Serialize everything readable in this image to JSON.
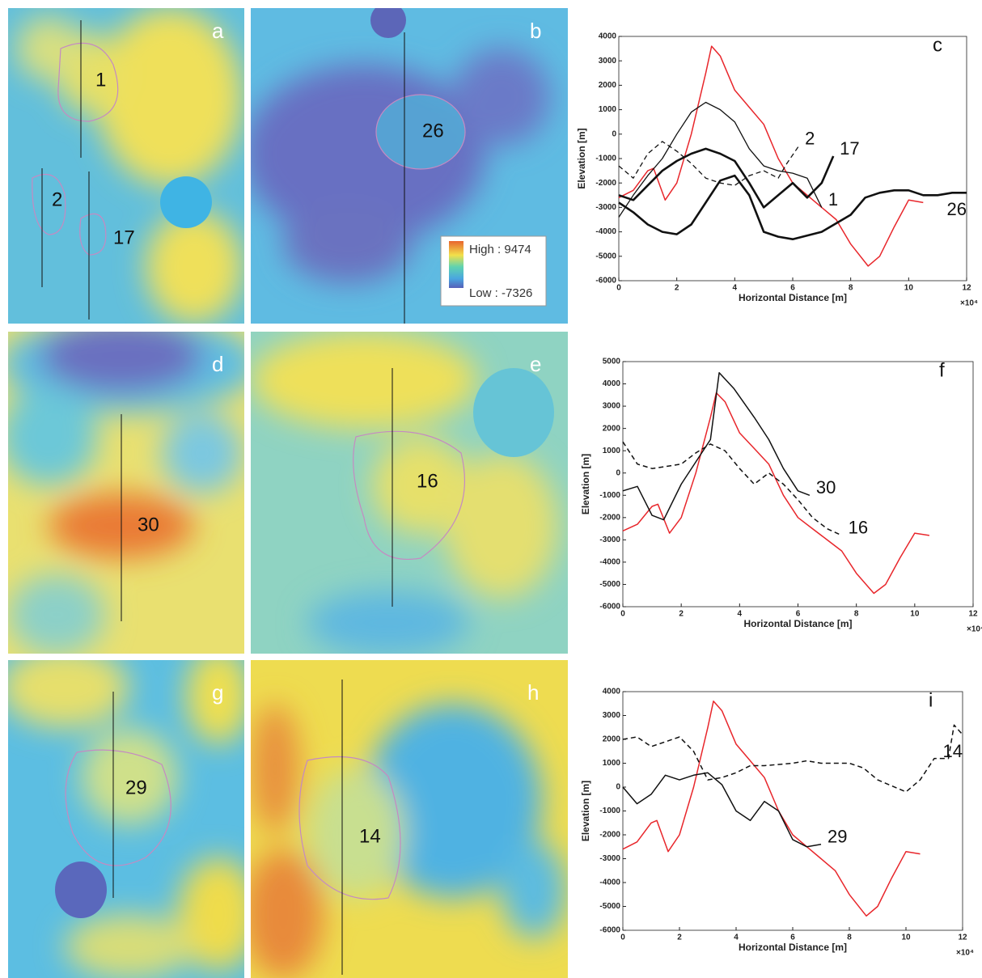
{
  "maps": [
    {
      "panel": "a",
      "labels": [
        "1",
        "2",
        "17"
      ]
    },
    {
      "panel": "b",
      "labels": [
        "26"
      ]
    },
    {
      "panel": "d",
      "labels": [
        "30"
      ]
    },
    {
      "panel": "e",
      "labels": [
        "16"
      ]
    },
    {
      "panel": "g",
      "labels": [
        "29"
      ]
    },
    {
      "panel": "h",
      "labels": [
        "14"
      ]
    }
  ],
  "legend": {
    "high": "High : 9474",
    "low": "Low : -7326"
  },
  "chart_data": [
    {
      "type": "line",
      "panel": "c",
      "xlabel": "Horizontal Distance [m]",
      "ylabel": "Elevation [m]",
      "x_multiplier": "×10⁴",
      "xlim": [
        0,
        12
      ],
      "xticks": [
        0,
        2,
        4,
        6,
        8,
        10,
        12
      ],
      "ylim": [
        -6000,
        4000
      ],
      "yticks": [
        -6000,
        -5000,
        -4000,
        -3000,
        -2000,
        -1000,
        0,
        1000,
        2000,
        3000,
        4000
      ],
      "series": [
        {
          "color": "#e8262b",
          "width": 1.5,
          "dash": false,
          "x": [
            0,
            0.5,
            1,
            1.2,
            1.6,
            2,
            2.5,
            3,
            3.2,
            3.5,
            4,
            4.5,
            5,
            5.5,
            6,
            6.5,
            7,
            7.5,
            8,
            8.6,
            9,
            9.5,
            10,
            10.5
          ],
          "values": [
            -2600,
            -2300,
            -1500,
            -1400,
            -2700,
            -2000,
            0,
            2500,
            3600,
            3200,
            1800,
            1100,
            400,
            -1000,
            -2000,
            -2500,
            -3000,
            -3500,
            -4500,
            -5400,
            -5000,
            -3800,
            -2700,
            -2800
          ]
        },
        {
          "name": "1",
          "color": "#111",
          "width": 1.3,
          "dash": false,
          "x": [
            0,
            0.5,
            1,
            1.5,
            2,
            2.5,
            3,
            3.5,
            4,
            4.5,
            5,
            5.5,
            6,
            6.5,
            7
          ],
          "values": [
            -3400,
            -2500,
            -1700,
            -1000,
            0,
            900,
            1300,
            1000,
            500,
            -600,
            -1300,
            -1500,
            -1600,
            -1800,
            -3000
          ]
        },
        {
          "name": "2",
          "color": "#111",
          "width": 1.3,
          "dash": true,
          "x": [
            0,
            0.5,
            1,
            1.5,
            2,
            2.5,
            3,
            3.5,
            4,
            4.5,
            5,
            5.5,
            5.8,
            6.2
          ],
          "values": [
            -1300,
            -1800,
            -800,
            -300,
            -700,
            -1200,
            -1800,
            -2000,
            -2100,
            -1700,
            -1500,
            -1800,
            -1200,
            -500
          ]
        },
        {
          "name": "17",
          "color": "#111",
          "width": 2.6,
          "dash": false,
          "x": [
            0,
            0.5,
            1,
            1.5,
            2,
            2.5,
            3,
            3.5,
            4,
            4.5,
            5,
            5.5,
            6,
            6.5,
            7,
            7.4
          ],
          "values": [
            -2500,
            -2700,
            -2100,
            -1500,
            -1100,
            -800,
            -600,
            -800,
            -1100,
            -2000,
            -3000,
            -2500,
            -2000,
            -2600,
            -2000,
            -900
          ]
        },
        {
          "name": "26",
          "color": "#111",
          "width": 2.6,
          "dash": false,
          "x": [
            0,
            0.5,
            1,
            1.5,
            2,
            2.5,
            3,
            3.5,
            4,
            4.5,
            5,
            5.5,
            6,
            7,
            8,
            8.5,
            9,
            9.5,
            10,
            10.5,
            11,
            11.5,
            12
          ],
          "values": [
            -2800,
            -3200,
            -3700,
            -4000,
            -4100,
            -3700,
            -2800,
            -1900,
            -1700,
            -2500,
            -4000,
            -4200,
            -4300,
            -4000,
            -3300,
            -2600,
            -2400,
            -2300,
            -2300,
            -2500,
            -2500,
            -2400,
            -2400
          ]
        }
      ]
    },
    {
      "type": "line",
      "panel": "f",
      "xlabel": "Horizontal Distance [m]",
      "ylabel": "Elevation [m]",
      "x_multiplier": "×10⁴",
      "xlim": [
        0,
        12
      ],
      "xticks": [
        0,
        2,
        4,
        6,
        8,
        10,
        12
      ],
      "ylim": [
        -6000,
        5000
      ],
      "yticks": [
        -6000,
        -5000,
        -4000,
        -3000,
        -2000,
        -1000,
        0,
        1000,
        2000,
        3000,
        4000,
        5000
      ],
      "series": [
        {
          "color": "#e8262b",
          "width": 1.5,
          "dash": false,
          "x": [
            0,
            0.5,
            1,
            1.2,
            1.6,
            2,
            2.5,
            3,
            3.2,
            3.5,
            4,
            4.5,
            5,
            5.5,
            6,
            6.5,
            7,
            7.5,
            8,
            8.6,
            9,
            9.5,
            10,
            10.5
          ],
          "values": [
            -2600,
            -2300,
            -1500,
            -1400,
            -2700,
            -2000,
            0,
            2500,
            3600,
            3200,
            1800,
            1100,
            400,
            -1000,
            -2000,
            -2500,
            -3000,
            -3500,
            -4500,
            -5400,
            -5000,
            -3800,
            -2700,
            -2800
          ]
        },
        {
          "name": "30",
          "color": "#111",
          "width": 1.5,
          "dash": false,
          "x": [
            0,
            0.5,
            1,
            1.4,
            2,
            2.5,
            3,
            3.3,
            3.8,
            4.5,
            5,
            5.5,
            6,
            6.4
          ],
          "values": [
            -800,
            -600,
            -1900,
            -2100,
            -500,
            500,
            1500,
            4500,
            3800,
            2500,
            1500,
            200,
            -800,
            -1000
          ]
        },
        {
          "name": "16",
          "color": "#111",
          "width": 1.5,
          "dash": true,
          "x": [
            0,
            0.5,
            1,
            1.5,
            2,
            2.5,
            3,
            3.5,
            4,
            4.5,
            5,
            5.5,
            6,
            6.5,
            7,
            7.5
          ],
          "values": [
            1400,
            400,
            200,
            300,
            400,
            900,
            1300,
            1000,
            200,
            -500,
            0,
            -500,
            -1200,
            -2000,
            -2500,
            -2800
          ]
        }
      ]
    },
    {
      "type": "line",
      "panel": "i",
      "xlabel": "Horizontal Distance [m]",
      "ylabel": "Elevation [m]",
      "x_multiplier": "×10⁴",
      "xlim": [
        0,
        12
      ],
      "xticks": [
        0,
        2,
        4,
        6,
        8,
        10,
        12
      ],
      "ylim": [
        -6000,
        4000
      ],
      "yticks": [
        -6000,
        -5000,
        -4000,
        -3000,
        -2000,
        -1000,
        0,
        1000,
        2000,
        3000,
        4000
      ],
      "series": [
        {
          "color": "#e8262b",
          "width": 1.5,
          "dash": false,
          "x": [
            0,
            0.5,
            1,
            1.2,
            1.6,
            2,
            2.5,
            3,
            3.2,
            3.5,
            4,
            4.5,
            5,
            5.5,
            6,
            6.5,
            7,
            7.5,
            8,
            8.6,
            9,
            9.5,
            10,
            10.5
          ],
          "values": [
            -2600,
            -2300,
            -1500,
            -1400,
            -2700,
            -2000,
            0,
            2500,
            3600,
            3200,
            1800,
            1100,
            400,
            -1000,
            -2000,
            -2500,
            -3000,
            -3500,
            -4500,
            -5400,
            -5000,
            -3800,
            -2700,
            -2800
          ]
        },
        {
          "name": "29",
          "color": "#111",
          "width": 1.5,
          "dash": false,
          "x": [
            0,
            0.5,
            1,
            1.5,
            2,
            2.5,
            3,
            3.5,
            4,
            4.5,
            5,
            5.5,
            6,
            6.5,
            7
          ],
          "values": [
            0,
            -700,
            -300,
            500,
            300,
            500,
            600,
            100,
            -1000,
            -1400,
            -600,
            -1000,
            -2200,
            -2500,
            -2400
          ]
        },
        {
          "name": "14",
          "color": "#111",
          "width": 1.5,
          "dash": true,
          "x": [
            0,
            0.5,
            1,
            1.5,
            2,
            2.5,
            3,
            3.5,
            4,
            4.5,
            5,
            6,
            6.5,
            7,
            8,
            8.5,
            9,
            10,
            10.5,
            11,
            11.5,
            11.7,
            12
          ],
          "values": [
            2000,
            2100,
            1700,
            1900,
            2100,
            1500,
            300,
            400,
            600,
            900,
            900,
            1000,
            1100,
            1000,
            1000,
            800,
            300,
            -200,
            300,
            1200,
            1200,
            2600,
            2200
          ]
        }
      ]
    }
  ]
}
